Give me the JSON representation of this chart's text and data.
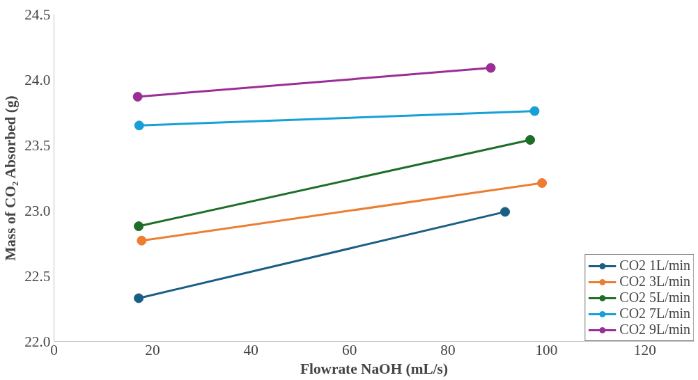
{
  "chart_data": {
    "type": "line",
    "xlabel": "Flowrate NaOH (mL/s)",
    "ylabel": "Mass of CO₂ Absorbed (g)",
    "xlim": [
      0,
      130
    ],
    "xticks": [
      0,
      20,
      40,
      60,
      80,
      100,
      120
    ],
    "ylim": [
      22.0,
      24.5
    ],
    "yticks": [
      {
        "value": 22.0,
        "label": "22.0"
      },
      {
        "value": 22.5,
        "label": "22.5"
      },
      {
        "value": 23.0,
        "label": "23.0"
      },
      {
        "value": 23.5,
        "label": "23.5"
      },
      {
        "value": 24.0,
        "label": "24.0"
      },
      {
        "value": 24.5,
        "label": "24.5"
      }
    ],
    "grid": false,
    "legend": "bottom right",
    "marker": "circle",
    "line_style": "solid",
    "series": [
      {
        "name": "CO2 1L/min",
        "color": "#1b5e84",
        "x": [
          17.2,
          91.6
        ],
        "values": [
          22.33,
          22.99
        ]
      },
      {
        "name": "CO2 3L/min",
        "color": "#ed7d31",
        "x": [
          17.8,
          99.1
        ],
        "values": [
          22.77,
          23.21
        ]
      },
      {
        "name": "CO2 5L/min",
        "color": "#1e6e28",
        "x": [
          17.2,
          96.7
        ],
        "values": [
          22.88,
          23.54
        ]
      },
      {
        "name": "CO2 7L/min",
        "color": "#17a0d8",
        "x": [
          17.3,
          97.6
        ],
        "values": [
          23.65,
          23.76
        ]
      },
      {
        "name": "CO2 9L/min",
        "color": "#9b2d97",
        "x": [
          17.0,
          88.7
        ],
        "values": [
          23.87,
          24.09
        ]
      }
    ]
  }
}
